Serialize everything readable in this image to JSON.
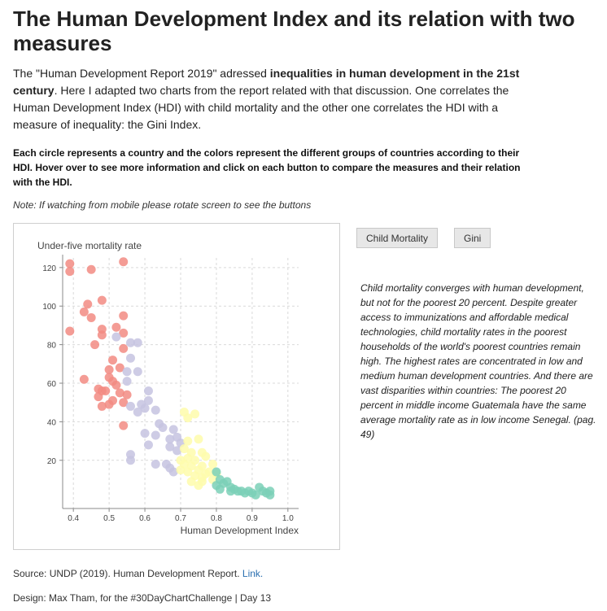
{
  "page": {
    "title": "The Human Development Index and its relation with two measures",
    "intro_before": "The \"Human Development Report 2019\" adressed ",
    "intro_bold": "inequalities in human development in the 21st century",
    "intro_after": ". Here I adapted two charts from the report related with that discussion. One correlates the Human Development Index (HDI) with child mortality and the other one correlates the HDI with a measure of inequality: the Gini Index.",
    "instructions": "Each circle represents a country and the colors represent the different groups of countries according to their HDI. Hover over to see more information and click on each button to compare the measures and their relation with the HDI.",
    "note": "Note: If watching from mobile please rotate screen to see the buttons",
    "description": "Child mortality converges with human development, but not for the poorest 20 percent. Despite greater access to immunizations and affordable medical technologies, child mortality rates in the poorest households of the world's poorest countries remain high. The highest rates are concentrated in low and medium human development countries. And there are vast disparities within countries: The poorest 20 percent in middle income Guatemala have the same average mortality rate as in low income Senegal. (pag. 49)",
    "source_text": "Source: UNDP (2019). Human Development Report. ",
    "source_link": "Link.",
    "design": "Design: Max Tham, for the #30DayChartChallenge | Day 13"
  },
  "buttons": {
    "child_mortality": "Child Mortality",
    "gini": "Gini"
  },
  "chart_data": {
    "type": "scatter",
    "title": "",
    "xlabel": "Human Development Index",
    "ylabel": "Under-five mortality rate",
    "xlim": [
      0.37,
      1.03
    ],
    "ylim": [
      -5,
      125
    ],
    "x_ticks": [
      "0.4",
      "0.5",
      "0.6",
      "0.7",
      "0.8",
      "0.9",
      "1.0"
    ],
    "y_ticks": [
      "20",
      "40",
      "60",
      "80",
      "100",
      "120"
    ],
    "x_tick_values": [
      0.4,
      0.5,
      0.6,
      0.7,
      0.8,
      0.9,
      1.0
    ],
    "y_tick_values": [
      20,
      40,
      60,
      80,
      100,
      120
    ],
    "grid": true,
    "series": [
      {
        "color": "#f28b82",
        "points": [
          [
            0.39,
            122
          ],
          [
            0.39,
            118
          ],
          [
            0.44,
            101
          ],
          [
            0.45,
            119
          ],
          [
            0.54,
            123
          ],
          [
            0.43,
            97
          ],
          [
            0.45,
            94
          ],
          [
            0.48,
            103
          ],
          [
            0.39,
            87
          ],
          [
            0.48,
            88
          ],
          [
            0.48,
            85
          ],
          [
            0.52,
            89
          ],
          [
            0.54,
            95
          ],
          [
            0.54,
            86
          ],
          [
            0.46,
            80
          ],
          [
            0.54,
            78
          ],
          [
            0.51,
            72
          ],
          [
            0.5,
            67
          ],
          [
            0.53,
            68
          ],
          [
            0.43,
            62
          ],
          [
            0.5,
            63
          ],
          [
            0.51,
            61
          ],
          [
            0.52,
            59
          ],
          [
            0.47,
            57
          ],
          [
            0.48,
            56
          ],
          [
            0.49,
            56
          ],
          [
            0.47,
            53
          ],
          [
            0.53,
            55
          ],
          [
            0.55,
            54
          ],
          [
            0.51,
            51
          ],
          [
            0.54,
            50
          ],
          [
            0.48,
            48
          ],
          [
            0.5,
            49
          ],
          [
            0.54,
            38
          ]
        ]
      },
      {
        "color": "#c5c3e0",
        "points": [
          [
            0.52,
            84
          ],
          [
            0.56,
            81
          ],
          [
            0.58,
            81
          ],
          [
            0.56,
            73
          ],
          [
            0.55,
            66
          ],
          [
            0.58,
            66
          ],
          [
            0.55,
            61
          ],
          [
            0.61,
            56
          ],
          [
            0.59,
            49
          ],
          [
            0.56,
            48
          ],
          [
            0.61,
            51
          ],
          [
            0.6,
            47
          ],
          [
            0.58,
            45
          ],
          [
            0.63,
            46
          ],
          [
            0.64,
            39
          ],
          [
            0.65,
            37
          ],
          [
            0.68,
            36
          ],
          [
            0.6,
            34
          ],
          [
            0.63,
            33
          ],
          [
            0.67,
            31
          ],
          [
            0.69,
            32
          ],
          [
            0.7,
            29
          ],
          [
            0.61,
            28
          ],
          [
            0.67,
            27
          ],
          [
            0.69,
            25
          ],
          [
            0.56,
            23
          ],
          [
            0.56,
            20
          ],
          [
            0.63,
            18
          ],
          [
            0.66,
            18
          ],
          [
            0.67,
            16
          ],
          [
            0.68,
            14
          ]
        ]
      },
      {
        "color": "#fefcab",
        "points": [
          [
            0.71,
            45
          ],
          [
            0.74,
            44
          ],
          [
            0.72,
            42
          ],
          [
            0.72,
            30
          ],
          [
            0.75,
            31
          ],
          [
            0.71,
            26
          ],
          [
            0.73,
            24
          ],
          [
            0.76,
            24
          ],
          [
            0.72,
            21
          ],
          [
            0.7,
            20
          ],
          [
            0.74,
            20
          ],
          [
            0.77,
            22
          ],
          [
            0.71,
            18
          ],
          [
            0.73,
            17
          ],
          [
            0.76,
            17
          ],
          [
            0.79,
            18
          ],
          [
            0.7,
            15
          ],
          [
            0.72,
            14
          ],
          [
            0.75,
            15
          ],
          [
            0.78,
            14
          ],
          [
            0.74,
            12
          ],
          [
            0.77,
            13
          ],
          [
            0.8,
            13
          ],
          [
            0.76,
            11
          ],
          [
            0.73,
            9
          ],
          [
            0.76,
            9
          ],
          [
            0.79,
            10
          ],
          [
            0.75,
            7
          ]
        ]
      },
      {
        "color": "#7bd0b7",
        "points": [
          [
            0.8,
            14
          ],
          [
            0.81,
            10
          ],
          [
            0.82,
            8
          ],
          [
            0.8,
            7
          ],
          [
            0.81,
            5
          ],
          [
            0.83,
            9
          ],
          [
            0.84,
            6
          ],
          [
            0.85,
            5
          ],
          [
            0.86,
            4
          ],
          [
            0.87,
            4
          ],
          [
            0.89,
            4
          ],
          [
            0.9,
            3
          ],
          [
            0.91,
            2
          ],
          [
            0.92,
            6
          ],
          [
            0.93,
            4
          ],
          [
            0.94,
            3
          ],
          [
            0.95,
            4
          ],
          [
            0.88,
            3
          ],
          [
            0.84,
            4
          ],
          [
            0.95,
            2
          ]
        ]
      }
    ]
  }
}
